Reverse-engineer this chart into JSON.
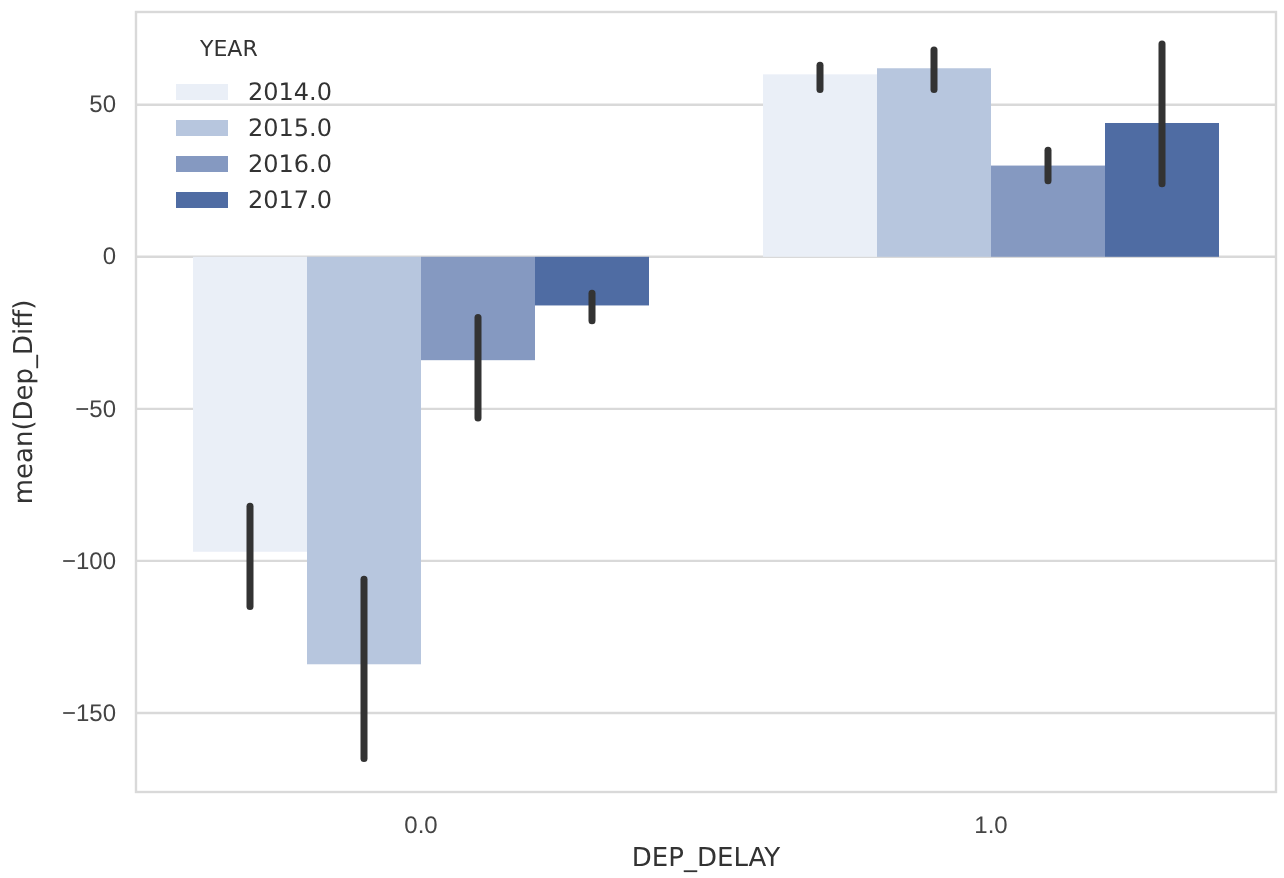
{
  "chart_data": {
    "type": "bar",
    "xlabel": "DEP_DELAY",
    "ylabel": "mean(Dep_Diff)",
    "legend_title": "YEAR",
    "categories": [
      "0.0",
      "1.0"
    ],
    "series": [
      {
        "name": "2014.0",
        "color": "#eaeff7",
        "values": [
          -97,
          60
        ],
        "errors": [
          [
            -115,
            -82
          ],
          [
            55,
            63
          ]
        ]
      },
      {
        "name": "2015.0",
        "color": "#b7c6de",
        "values": [
          -134,
          62
        ],
        "errors": [
          [
            -165,
            -106
          ],
          [
            55,
            68
          ]
        ]
      },
      {
        "name": "2016.0",
        "color": "#8599c1",
        "values": [
          -34,
          30
        ],
        "errors": [
          [
            -53,
            -20
          ],
          [
            25,
            35
          ]
        ]
      },
      {
        "name": "2017.0",
        "color": "#4f6ca3",
        "values": [
          -16,
          44
        ],
        "errors": [
          [
            -21,
            -12
          ],
          [
            24,
            70
          ]
        ]
      }
    ],
    "ylim": [
      -176,
      80.5
    ],
    "yticks": [
      -150,
      -100,
      -50,
      0,
      50
    ],
    "grid": "y",
    "legend": "top left"
  }
}
